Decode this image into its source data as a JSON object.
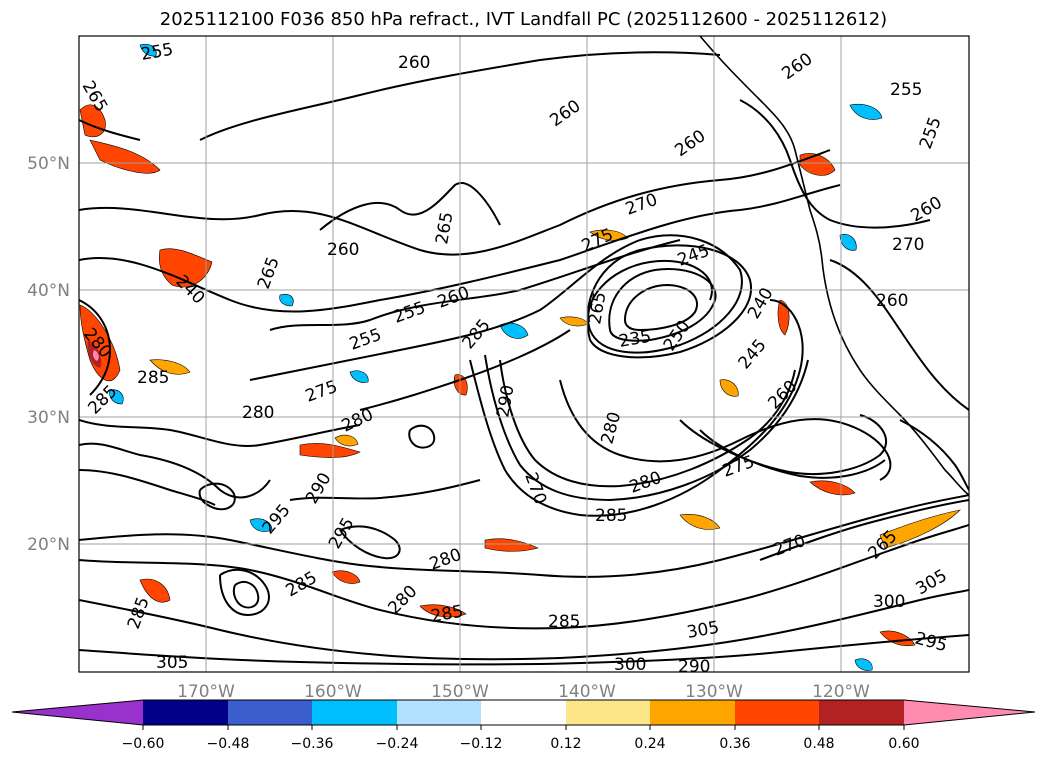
{
  "title": "2025112100 F036 850 hPa refract., IVT Landfall PC (2025112600 - 2025112612)",
  "colors": {
    "coast": "#000000",
    "grid": "#a0a0a0",
    "contour": "#000000",
    "positive_fill": [
      "#fde68a",
      "#ffa500",
      "#ff4500",
      "#b22222",
      "#ff8bb0"
    ],
    "negative_fill": [
      "#b0e2ff",
      "#00bfff",
      "#3a5fcd",
      "#00008b",
      "#9932cc"
    ]
  },
  "latitude_labels": [
    "50°N",
    "40°N",
    "30°N",
    "20°N"
  ],
  "longitude_labels": [
    "170°W",
    "160°W",
    "150°W",
    "140°W",
    "130°W",
    "120°W"
  ],
  "contour_labels": [
    "255",
    "265",
    "260",
    "260",
    "260",
    "255",
    "260",
    "270",
    "265",
    "275",
    "245",
    "260",
    "240",
    "255",
    "260",
    "265",
    "255",
    "260",
    "235",
    "250",
    "240",
    "280",
    "285",
    "285",
    "275",
    "265",
    "280",
    "285",
    "295",
    "290",
    "280",
    "245",
    "260",
    "280",
    "270",
    "280",
    "275",
    "290",
    "295",
    "285",
    "280",
    "285",
    "280",
    "285",
    "285",
    "285",
    "270",
    "265",
    "305",
    "300",
    "305",
    "295",
    "305",
    "300",
    "290",
    "270",
    "260",
    "255"
  ],
  "colorbar": {
    "colors": [
      "#9932cc",
      "#00008b",
      "#3a5fcd",
      "#00bfff",
      "#b0e2ff",
      "#ffffff",
      "#fde68a",
      "#ffa500",
      "#ff4500",
      "#b22222",
      "#ff8bb0"
    ],
    "tick_labels": [
      "−0.60",
      "−0.48",
      "−0.36",
      "−0.24",
      "−0.12",
      "0.12",
      "0.24",
      "0.36",
      "0.48",
      "0.60"
    ]
  }
}
